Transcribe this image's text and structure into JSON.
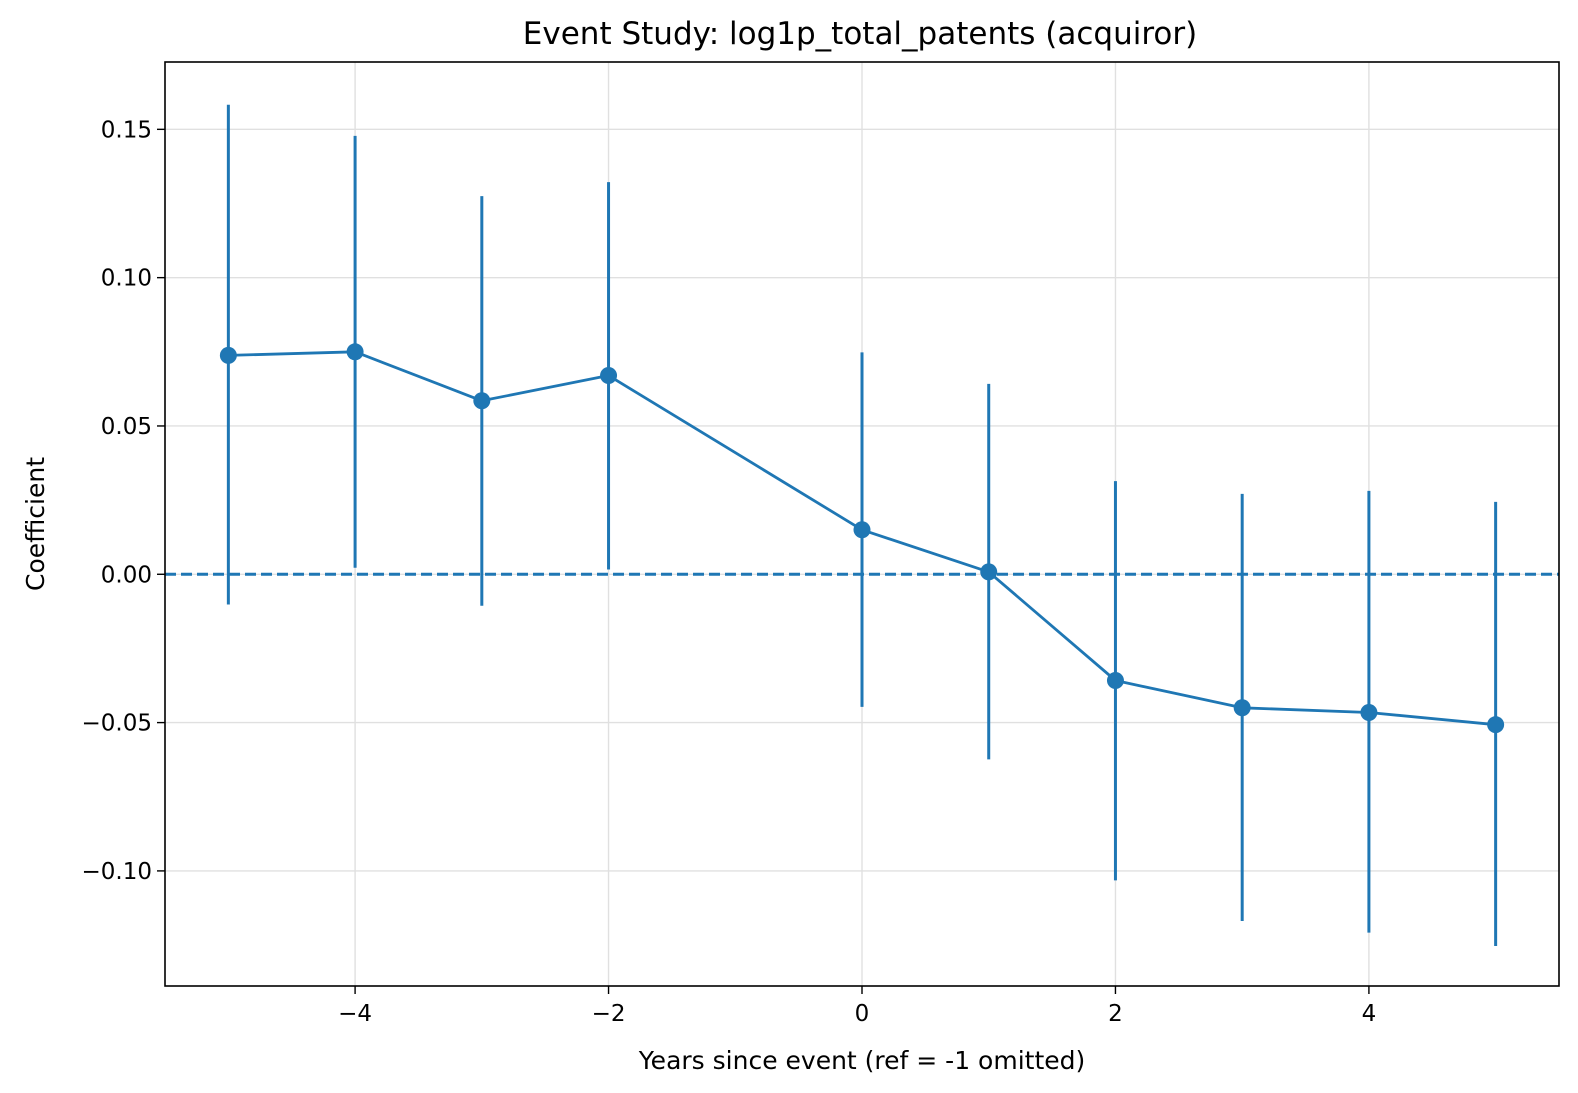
{
  "chart_data": {
    "type": "line",
    "title": "Event Study: log1p_total_patents (acquiror)",
    "xlabel": "Years since event (ref = -1 omitted)",
    "ylabel": "Coefficient",
    "xlim": [
      -5.5,
      5.5
    ],
    "ylim": [
      -0.1388,
      0.1727
    ],
    "x_ticks": [
      -4,
      -2,
      0,
      2,
      4
    ],
    "x_tick_labels": [
      "−4",
      "−2",
      "0",
      "2",
      "4"
    ],
    "y_ticks": [
      -0.1,
      -0.05,
      0.0,
      0.05,
      0.1,
      0.15
    ],
    "y_tick_labels": [
      "−0.10",
      "−0.05",
      "0.00",
      "0.05",
      "0.10",
      "0.15"
    ],
    "grid": true,
    "reference_line": {
      "y": 0,
      "style": "dashed"
    },
    "color": "#1f77b4",
    "series": [
      {
        "x": [
          -5,
          -4,
          -3,
          -2,
          0,
          1,
          2,
          3,
          4,
          5
        ],
        "y": [
          0.0738,
          0.075,
          0.0585,
          0.067,
          0.015,
          0.0008,
          -0.0358,
          -0.045,
          -0.0466,
          -0.0507
        ],
        "ci_low": [
          -0.0102,
          0.0022,
          -0.0106,
          0.0016,
          -0.0447,
          -0.0624,
          -0.1032,
          -0.1169,
          -0.1208,
          -0.1253
        ],
        "ci_high": [
          0.1583,
          0.1478,
          0.1275,
          0.1322,
          0.0748,
          0.0642,
          0.0314,
          0.0271,
          0.0281,
          0.0244
        ]
      }
    ]
  }
}
